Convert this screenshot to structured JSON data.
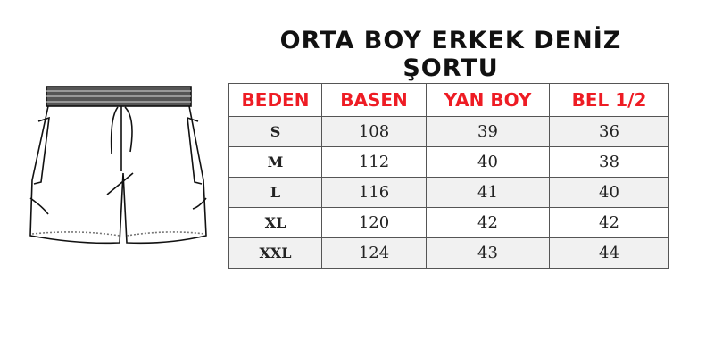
{
  "title": "ORTA BOY ERKEK DENİZ ŞORTU",
  "headers": [
    "BEDEN",
    "BASEN",
    "YAN BOY",
    "BEL 1/2"
  ],
  "rows": [
    [
      "S",
      "108",
      "39",
      "36"
    ],
    [
      "M",
      "112",
      "40",
      "38"
    ],
    [
      "L",
      "116",
      "41",
      "40"
    ],
    [
      "XL",
      "120",
      "42",
      "42"
    ],
    [
      "XXL",
      "124",
      "43",
      "44"
    ]
  ],
  "colors": {
    "header_text": "#ee1c24",
    "stripe": "#f1f1f1",
    "border": "#555555"
  }
}
